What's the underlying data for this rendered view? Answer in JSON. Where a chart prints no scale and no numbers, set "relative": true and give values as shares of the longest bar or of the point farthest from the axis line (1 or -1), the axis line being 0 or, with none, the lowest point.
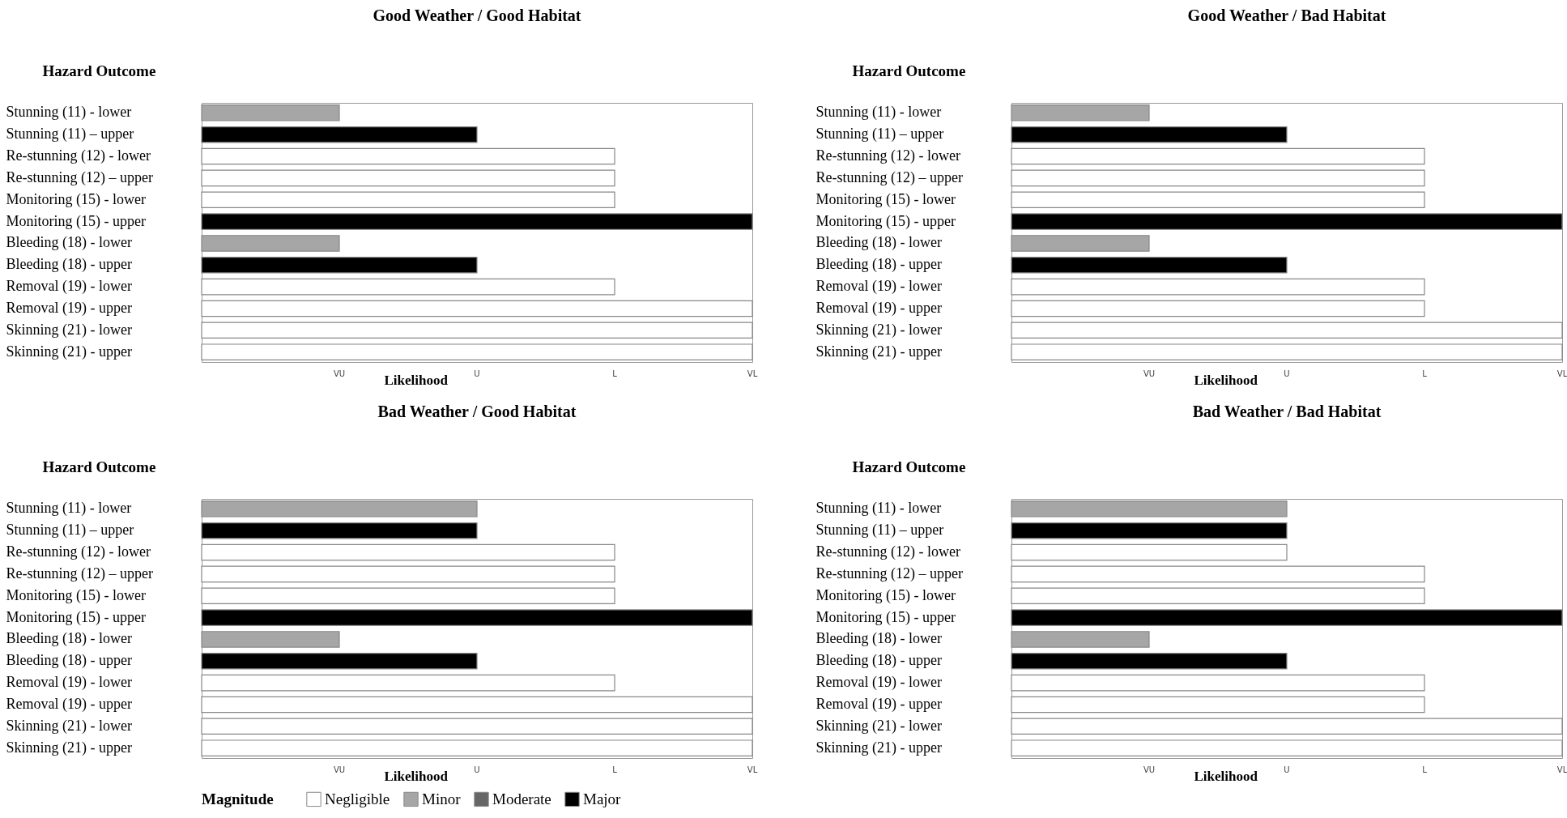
{
  "chart_data": [
    {
      "type": "bar",
      "orientation": "horizontal",
      "relative": true,
      "title": "Good Weather / Good Habitat",
      "ylabel": "Hazard Outcome",
      "xlabel": "Likelihood",
      "legend_title": "Magnitude",
      "legend": "bottom",
      "annotations": [
        "VU",
        "U",
        "L",
        "VL"
      ],
      "categories": [
        "Stunning (11) - lower",
        "Stunning (11) – upper",
        "Re-stunning (12) - lower",
        "Re-stunning (12) – upper",
        "Monitoring (15) - lower",
        "Monitoring (15) - upper",
        "Bleeding (18) - lower",
        "Bleeding (18) - upper",
        "Removal (19) - lower",
        "Removal (19) - upper",
        "Skinning (21) - lower",
        "Skinning (21) - upper"
      ],
      "series": [
        {
          "name": "Negligible",
          "color": "#ffffff",
          "values": [
            null,
            null,
            0.75,
            0.75,
            0.75,
            null,
            null,
            null,
            0.75,
            1,
            1,
            1
          ]
        },
        {
          "name": "Minor",
          "color": "#a6a6a6",
          "values": [
            0.25,
            null,
            null,
            null,
            null,
            null,
            0.25,
            null,
            null,
            null,
            null,
            null
          ]
        },
        {
          "name": "Moderate",
          "color": "#666666",
          "values": [
            null,
            null,
            null,
            null,
            null,
            null,
            null,
            null,
            null,
            null,
            null,
            null
          ]
        },
        {
          "name": "Major",
          "color": "#000000",
          "values": [
            null,
            0.5,
            null,
            null,
            null,
            1,
            null,
            0.5,
            null,
            null,
            null,
            null
          ]
        }
      ]
    },
    {
      "type": "bar",
      "orientation": "horizontal",
      "relative": true,
      "title": "Good Weather / Bad Habitat",
      "ylabel": "Hazard Outcome",
      "xlabel": "Likelihood",
      "annotations": [
        "VU",
        "U",
        "L",
        "VL"
      ],
      "categories": [
        "Stunning (11) - lower",
        "Stunning (11) – upper",
        "Re-stunning (12) - lower",
        "Re-stunning (12) – upper",
        "Monitoring (15) - lower",
        "Monitoring (15) - upper",
        "Bleeding (18) - lower",
        "Bleeding (18) - upper",
        "Removal (19) - lower",
        "Removal (19) - upper",
        "Skinning (21) - lower",
        "Skinning (21) - upper"
      ],
      "series": [
        {
          "name": "Negligible",
          "color": "#ffffff",
          "values": [
            null,
            null,
            0.75,
            0.75,
            0.75,
            null,
            null,
            null,
            0.75,
            0.75,
            1,
            1
          ]
        },
        {
          "name": "Minor",
          "color": "#a6a6a6",
          "values": [
            0.25,
            null,
            null,
            null,
            null,
            null,
            0.25,
            null,
            null,
            null,
            null,
            null
          ]
        },
        {
          "name": "Major",
          "color": "#000000",
          "values": [
            null,
            0.5,
            null,
            null,
            null,
            1,
            null,
            0.5,
            null,
            null,
            null,
            null
          ]
        }
      ]
    },
    {
      "type": "bar",
      "orientation": "horizontal",
      "relative": true,
      "title": "Bad Weather / Good Habitat",
      "ylabel": "Hazard Outcome",
      "xlabel": "Likelihood",
      "annotations": [
        "VU",
        "U",
        "L",
        "VL"
      ],
      "categories": [
        "Stunning (11) - lower",
        "Stunning (11) – upper",
        "Re-stunning (12) - lower",
        "Re-stunning (12) – upper",
        "Monitoring (15) - lower",
        "Monitoring (15) - upper",
        "Bleeding (18) - lower",
        "Bleeding (18) - upper",
        "Removal (19) - lower",
        "Removal (19) - upper",
        "Skinning (21) - lower",
        "Skinning (21) - upper"
      ],
      "series": [
        {
          "name": "Negligible",
          "color": "#ffffff",
          "values": [
            null,
            null,
            0.75,
            0.75,
            0.75,
            null,
            null,
            null,
            0.75,
            1,
            1,
            1
          ]
        },
        {
          "name": "Minor",
          "color": "#a6a6a6",
          "values": [
            0.5,
            null,
            null,
            null,
            null,
            null,
            0.25,
            null,
            null,
            null,
            null,
            null
          ]
        },
        {
          "name": "Major",
          "color": "#000000",
          "values": [
            null,
            0.5,
            null,
            null,
            null,
            1,
            null,
            0.5,
            null,
            null,
            null,
            null
          ]
        }
      ]
    },
    {
      "type": "bar",
      "orientation": "horizontal",
      "relative": true,
      "title": "Bad Weather / Bad Habitat",
      "ylabel": "Hazard Outcome",
      "xlabel": "Likelihood",
      "annotations": [
        "VU",
        "U",
        "L",
        "VL"
      ],
      "categories": [
        "Stunning (11) - lower",
        "Stunning (11) – upper",
        "Re-stunning (12) - lower",
        "Re-stunning (12) – upper",
        "Monitoring (15) - lower",
        "Monitoring (15) - upper",
        "Bleeding (18) - lower",
        "Bleeding (18) - upper",
        "Removal (19) - lower",
        "Removal (19) - upper",
        "Skinning (21) - lower",
        "Skinning (21) - upper"
      ],
      "series": [
        {
          "name": "Negligible",
          "color": "#ffffff",
          "values": [
            null,
            null,
            0.5,
            0.75,
            0.75,
            null,
            null,
            null,
            0.75,
            0.75,
            1,
            1
          ]
        },
        {
          "name": "Minor",
          "color": "#a6a6a6",
          "values": [
            0.5,
            null,
            null,
            null,
            null,
            null,
            0.25,
            null,
            null,
            null,
            null,
            null
          ]
        },
        {
          "name": "Major",
          "color": "#000000",
          "values": [
            null,
            0.5,
            null,
            null,
            null,
            1,
            null,
            0.5,
            null,
            null,
            null,
            null
          ]
        }
      ]
    }
  ]
}
